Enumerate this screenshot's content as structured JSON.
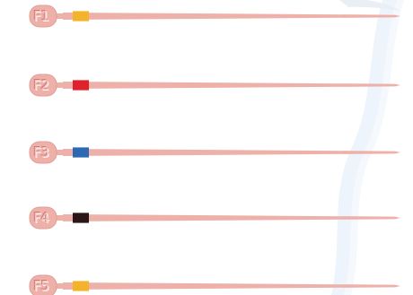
{
  "image": {
    "subject": "gutta-percha-points",
    "point_color": "#eeb1aa"
  },
  "points": [
    {
      "label": "F1",
      "band_color": "#f3b42c"
    },
    {
      "label": "F2",
      "band_color": "#e0202a"
    },
    {
      "label": "F3",
      "band_color": "#2d68b2"
    },
    {
      "label": "F4",
      "band_color": "#2a1616"
    },
    {
      "label": "F5",
      "band_color": "#f3b42c"
    }
  ]
}
